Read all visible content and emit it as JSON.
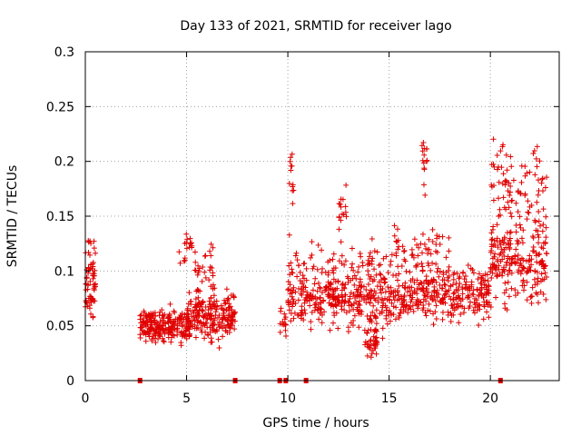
{
  "chart_data": {
    "type": "scatter",
    "title": "Day 133 of 2021, SRMTID for receiver lago",
    "xlabel": "GPS time / hours",
    "ylabel": "SRMTID / TECUs",
    "xlim": [
      0,
      23.4
    ],
    "ylim": [
      0,
      0.3
    ],
    "grid": true,
    "x_ticks": [
      0,
      5,
      10,
      15,
      20
    ],
    "y_ticks": [
      0,
      0.05,
      0.1,
      0.15,
      0.2,
      0.25,
      0.3
    ],
    "x_tick_labels": [
      "0",
      "5",
      "10",
      "15",
      "20"
    ],
    "y_tick_labels": [
      "0",
      "0.05",
      "0.1",
      "0.15",
      "0.2",
      "0.25",
      "0.3"
    ],
    "marker": "plus",
    "color": "#e00000",
    "gaps_markers_x": [
      2.7,
      7.4,
      9.6,
      9.9,
      10.9,
      20.5
    ],
    "clusters": [
      {
        "x_range": [
          0.0,
          0.5
        ],
        "y_center": 0.08,
        "y_spread": 0.025,
        "count": 55
      },
      {
        "x_range": [
          0.1,
          0.5
        ],
        "y_center": 0.115,
        "y_spread": 0.015,
        "count": 12
      },
      {
        "x_range": [
          2.7,
          5.2
        ],
        "y_center": 0.05,
        "y_spread": 0.012,
        "count": 230
      },
      {
        "x_range": [
          4.6,
          5.3
        ],
        "y_center": 0.12,
        "y_spread": 0.012,
        "count": 18
      },
      {
        "x_range": [
          5.0,
          7.4
        ],
        "y_center": 0.06,
        "y_spread": 0.018,
        "count": 230
      },
      {
        "x_range": [
          5.4,
          6.4
        ],
        "y_center": 0.1,
        "y_spread": 0.02,
        "count": 30
      },
      {
        "x_range": [
          9.6,
          10.0
        ],
        "y_center": 0.055,
        "y_spread": 0.012,
        "count": 15
      },
      {
        "x_range": [
          10.0,
          10.3
        ],
        "y_center": 0.19,
        "y_spread": 0.02,
        "count": 12
      },
      {
        "x_range": [
          10.0,
          15.0
        ],
        "y_center": 0.075,
        "y_spread": 0.02,
        "count": 340
      },
      {
        "x_range": [
          10.0,
          15.0
        ],
        "y_center": 0.11,
        "y_spread": 0.015,
        "count": 60
      },
      {
        "x_range": [
          12.5,
          12.9
        ],
        "y_center": 0.16,
        "y_spread": 0.02,
        "count": 15
      },
      {
        "x_range": [
          13.8,
          14.4
        ],
        "y_center": 0.035,
        "y_spread": 0.01,
        "count": 40
      },
      {
        "x_range": [
          15.0,
          20.0
        ],
        "y_center": 0.08,
        "y_spread": 0.02,
        "count": 340
      },
      {
        "x_range": [
          15.0,
          18.0
        ],
        "y_center": 0.12,
        "y_spread": 0.02,
        "count": 60
      },
      {
        "x_range": [
          16.6,
          16.9
        ],
        "y_center": 0.205,
        "y_spread": 0.025,
        "count": 15
      },
      {
        "x_range": [
          20.0,
          22.8
        ],
        "y_center": 0.11,
        "y_spread": 0.03,
        "count": 220
      },
      {
        "x_range": [
          20.0,
          22.8
        ],
        "y_center": 0.18,
        "y_spread": 0.035,
        "count": 90
      }
    ]
  }
}
